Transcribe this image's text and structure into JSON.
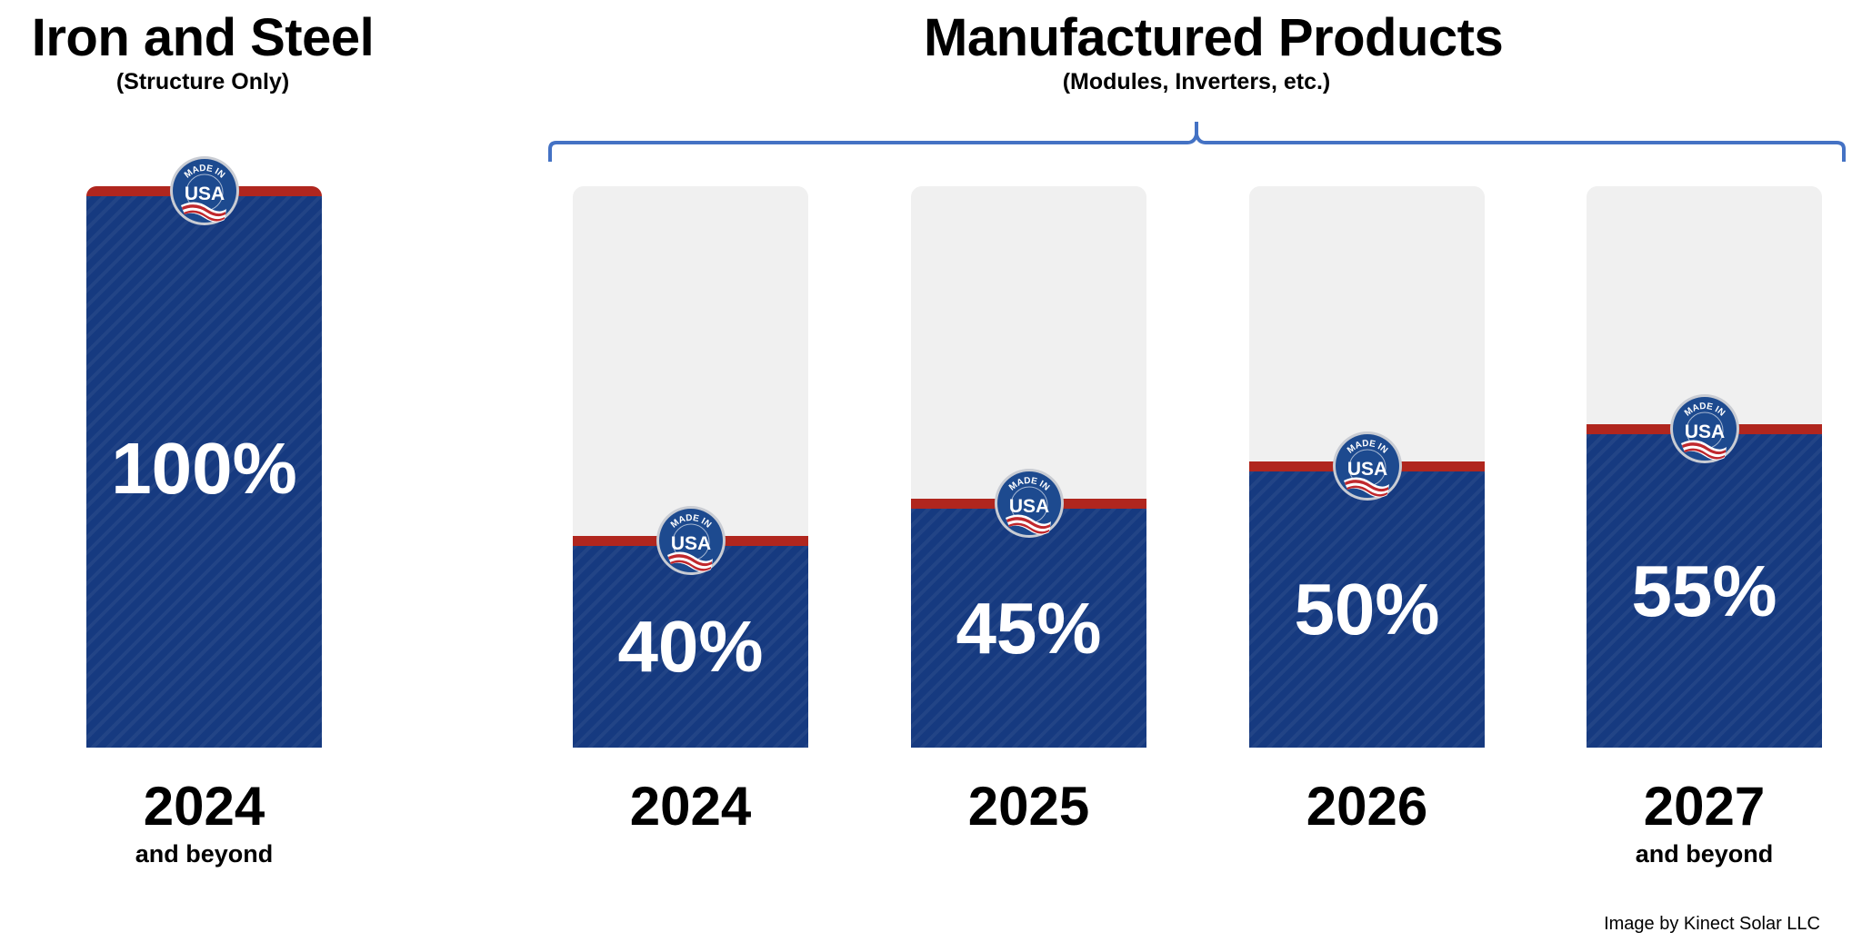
{
  "headers": {
    "iron_title": "Iron and Steel",
    "iron_subtitle": "(Structure Only)",
    "mfg_title": "Manufactured Products",
    "mfg_subtitle": "(Modules, Inverters, etc.)"
  },
  "badge": {
    "top_text": "MADE IN",
    "main_text": "USA"
  },
  "colors": {
    "fill": "#163a80",
    "band": "#b0261e",
    "track": "#f0f0f0",
    "bracket": "#4472c4"
  },
  "chart_data": {
    "type": "bar",
    "categories": [
      "2024",
      "2024",
      "2025",
      "2026",
      "2027"
    ],
    "values": [
      100,
      40,
      45,
      50,
      55
    ],
    "value_labels": [
      "100%",
      "40%",
      "45%",
      "50%",
      "55%"
    ],
    "sublabels": [
      "and beyond",
      "",
      "",
      "",
      "and beyond"
    ],
    "groups": [
      "Iron and Steel",
      "Manufactured Products",
      "Manufactured Products",
      "Manufactured Products",
      "Manufactured Products"
    ],
    "ylim": [
      0,
      100
    ],
    "unit": "%"
  },
  "credit": "Image by Kinect Solar LLC"
}
